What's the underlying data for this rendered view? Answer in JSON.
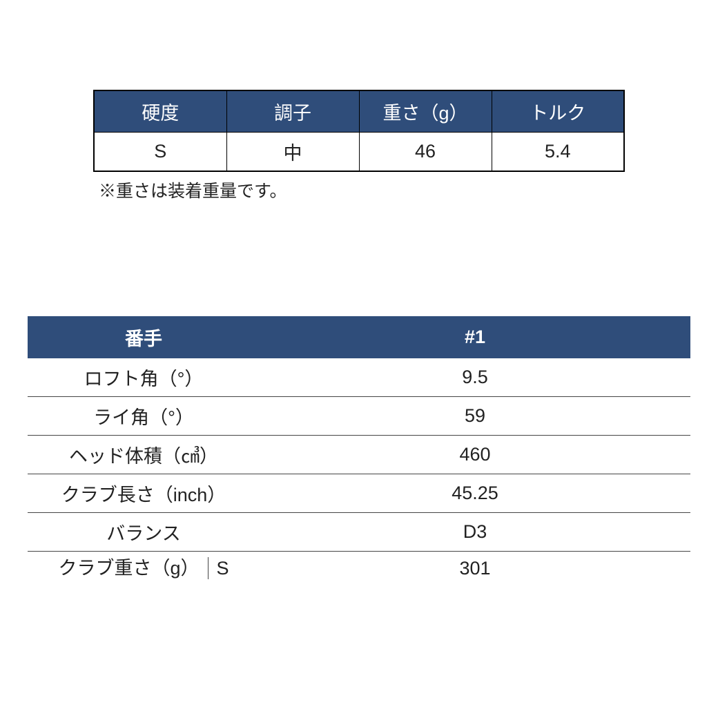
{
  "table1": {
    "header_bg": "#2f4d7a",
    "header_text_color": "#ffffff",
    "border_color": "#000000",
    "font_size": 27,
    "columns": [
      "硬度",
      "調子",
      "重さ（g）",
      "トルク"
    ],
    "row": [
      "S",
      "中",
      "46",
      "5.4"
    ]
  },
  "note": "※重さは装着重量です。",
  "table2": {
    "header_bg": "#2f4d7a",
    "header_text_color": "#ffffff",
    "row_border_color": "#444444",
    "font_size": 27,
    "header": {
      "label": "番手",
      "value": "#1"
    },
    "rows": [
      {
        "label": "ロフト角（°）",
        "value": "9.5"
      },
      {
        "label": "ライ角（°）",
        "value": "59"
      },
      {
        "label": "ヘッド体積（㎤）",
        "value": "460"
      },
      {
        "label": "クラブ長さ（inch）",
        "value": "45.25"
      },
      {
        "label": "バランス",
        "value": "D3"
      }
    ],
    "last_row": {
      "label_left": "クラブ重さ（g）",
      "label_right": "S",
      "value": "301"
    }
  }
}
